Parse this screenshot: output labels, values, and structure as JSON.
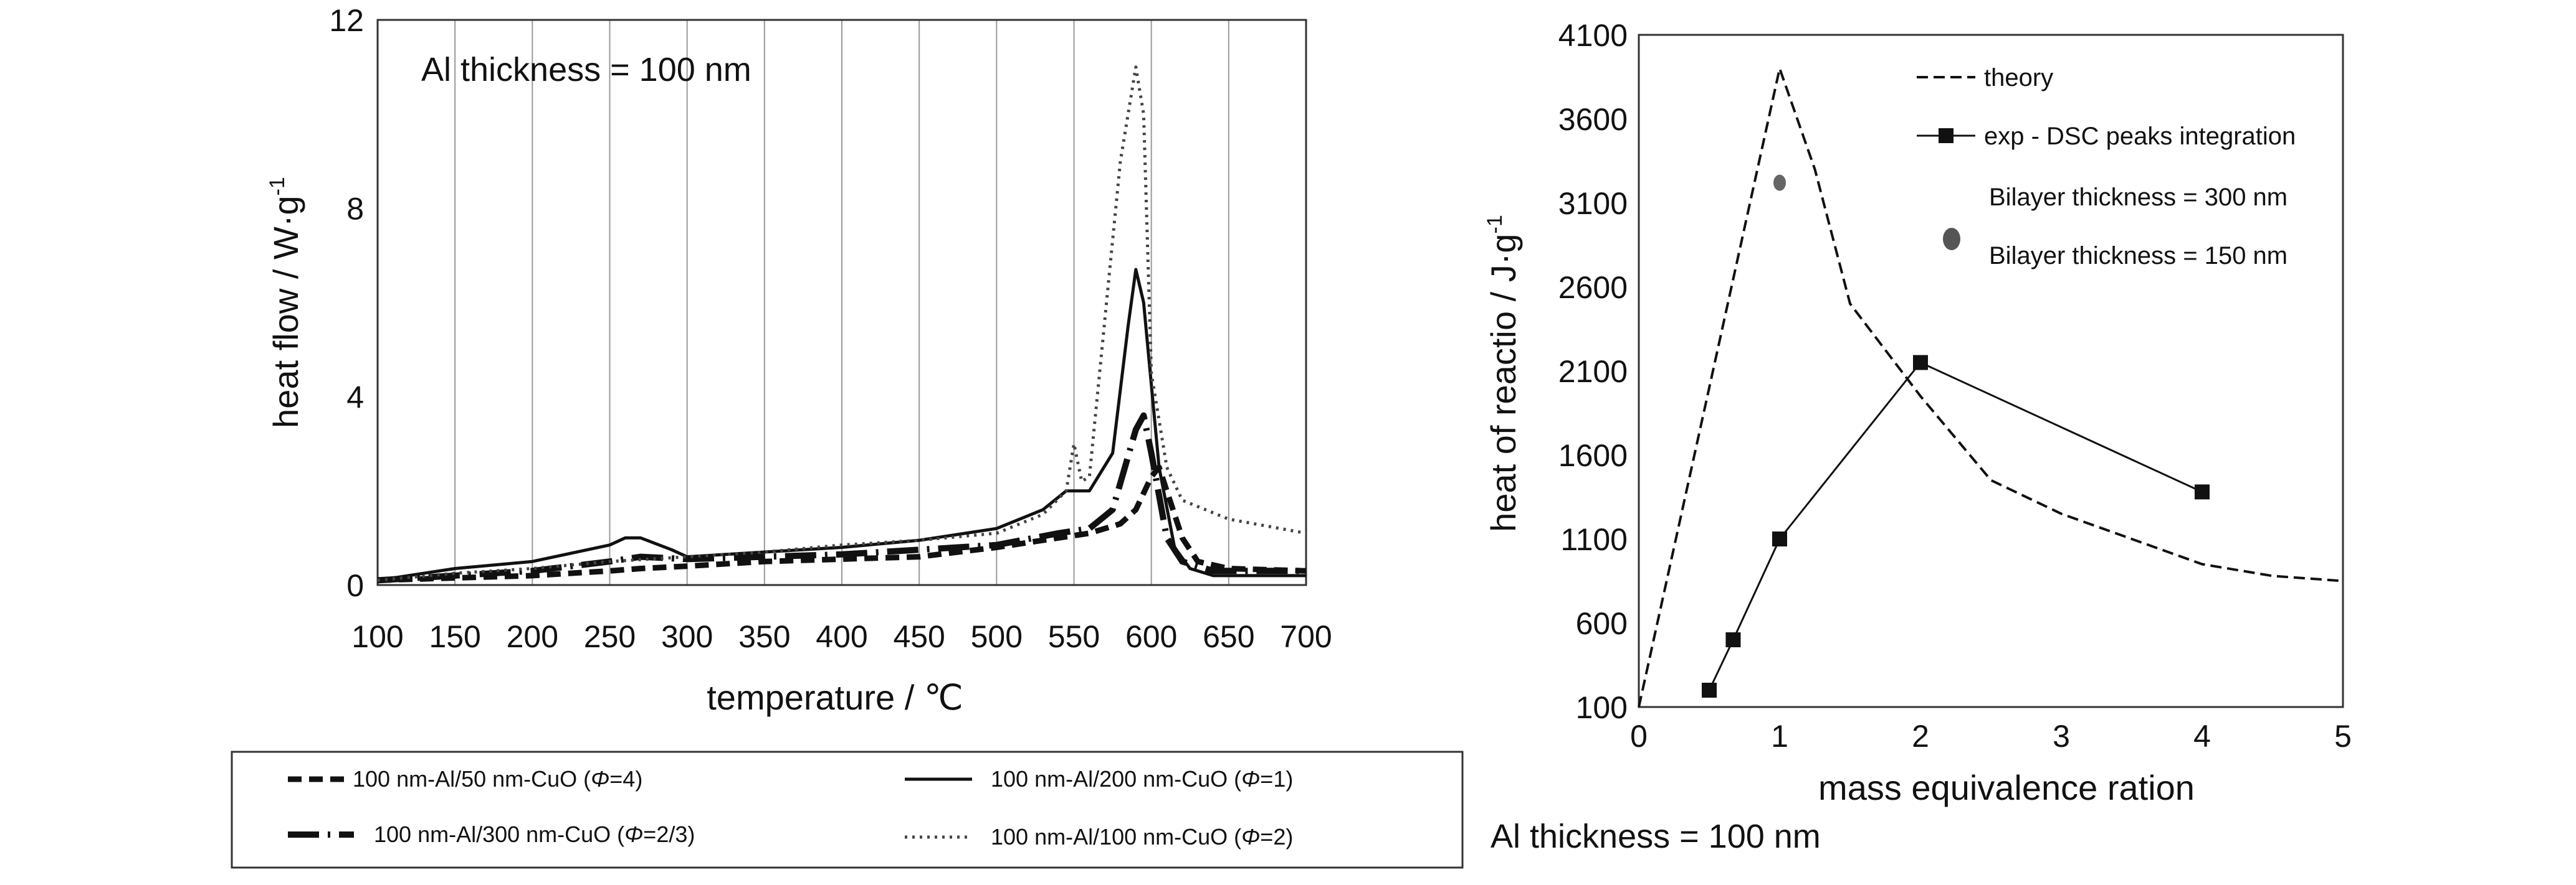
{
  "chart_data": [
    {
      "type": "line",
      "title": "",
      "annotation": "Al thickness = 100 nm",
      "xlabel": "temperature / ℃",
      "ylabel": "heat flow / W·g",
      "ylabel_sup": "-1",
      "xlim": [
        100,
        700
      ],
      "ylim": [
        0,
        12
      ],
      "xticks": [
        "100",
        "150",
        "200",
        "250",
        "300",
        "350",
        "400",
        "450",
        "500",
        "550",
        "600",
        "650",
        "700"
      ],
      "yticks": [
        "0",
        "4",
        "8",
        "12"
      ],
      "grid": "vertical",
      "legend_position": "bottom",
      "series": [
        {
          "name": "100 nm-Al/50 nm-CuO (",
          "phi_label": "Φ",
          "phi_value": "=4)",
          "style": "dashed-bold",
          "x": [
            100,
            150,
            200,
            250,
            270,
            300,
            350,
            400,
            450,
            500,
            540,
            560,
            580,
            590,
            600,
            605,
            610,
            620,
            630,
            650,
            700
          ],
          "y": [
            0.1,
            0.15,
            0.2,
            0.3,
            0.35,
            0.4,
            0.5,
            0.55,
            0.6,
            0.8,
            1.0,
            1.1,
            1.3,
            1.6,
            2.3,
            2.5,
            2.0,
            1.0,
            0.5,
            0.35,
            0.3
          ]
        },
        {
          "name": "100 nm-Al/300 nm-CuO (",
          "phi_label": "Φ",
          "phi_value": "=2/3)",
          "style": "dashdot-bold",
          "x": [
            100,
            150,
            200,
            250,
            270,
            300,
            350,
            400,
            450,
            500,
            540,
            560,
            575,
            590,
            595,
            600,
            610,
            620,
            640,
            660,
            700
          ],
          "y": [
            0.1,
            0.2,
            0.3,
            0.5,
            0.6,
            0.55,
            0.6,
            0.65,
            0.75,
            0.85,
            1.1,
            1.2,
            1.6,
            3.3,
            3.6,
            2.8,
            1.0,
            0.5,
            0.3,
            0.3,
            0.3
          ]
        },
        {
          "name": "100 nm-Al/200 nm-CuO (",
          "phi_label": "Φ",
          "phi_value": "=1)",
          "style": "solid",
          "x": [
            100,
            150,
            200,
            250,
            260,
            270,
            290,
            300,
            350,
            400,
            450,
            500,
            530,
            545,
            560,
            575,
            585,
            590,
            595,
            605,
            615,
            625,
            640,
            700
          ],
          "y": [
            0.1,
            0.35,
            0.5,
            0.85,
            1.0,
            1.0,
            0.75,
            0.6,
            0.7,
            0.8,
            0.95,
            1.2,
            1.6,
            2.0,
            2.0,
            2.8,
            5.5,
            6.7,
            6.0,
            2.5,
            0.8,
            0.35,
            0.2,
            0.2
          ]
        },
        {
          "name": "100 nm-Al/100 nm-CuO (",
          "phi_label": "Φ",
          "phi_value": "=2)",
          "style": "dotted",
          "x": [
            100,
            150,
            200,
            250,
            300,
            350,
            400,
            450,
            500,
            530,
            545,
            550,
            555,
            560,
            580,
            590,
            595,
            600,
            610,
            620,
            650,
            700
          ],
          "y": [
            0.1,
            0.25,
            0.35,
            0.5,
            0.6,
            0.7,
            0.85,
            0.95,
            1.1,
            1.5,
            2.0,
            3.0,
            2.2,
            2.3,
            9.0,
            11.0,
            10.0,
            4.5,
            2.5,
            1.8,
            1.4,
            1.1
          ]
        }
      ]
    },
    {
      "type": "line",
      "title": "",
      "annotation": "Al thickness = 100 nm",
      "xlabel": "mass equivalence ration",
      "ylabel": "heat of reactio / J·g",
      "ylabel_sup": "-1",
      "xlim": [
        0,
        5
      ],
      "ylim": [
        100,
        4100
      ],
      "xticks": [
        "0",
        "1",
        "2",
        "3",
        "4",
        "5"
      ],
      "yticks": [
        "100",
        "600",
        "1100",
        "1600",
        "2100",
        "2600",
        "3100",
        "3600",
        "4100"
      ],
      "grid": "none",
      "legend_position": "top-right",
      "series": [
        {
          "name": "theory",
          "style": "dashed",
          "x": [
            0,
            0.25,
            0.5,
            0.75,
            1.0,
            1.25,
            1.5,
            2.0,
            2.5,
            3.0,
            3.5,
            4.0,
            4.5,
            5.0
          ],
          "y": [
            100,
            1050,
            2000,
            2950,
            3900,
            3300,
            2500,
            1950,
            1450,
            1250,
            1100,
            950,
            880,
            850
          ]
        },
        {
          "name": "exp - DSC peaks integration",
          "style": "solid-square",
          "x": [
            0.5,
            0.67,
            1.0,
            2.0,
            4.0
          ],
          "y": [
            200,
            500,
            1100,
            2150,
            1380
          ]
        },
        {
          "name": "Bilayer thickness = 300 nm",
          "style": "marker-small",
          "x": [
            1.0
          ],
          "y": [
            3220
          ]
        },
        {
          "name": "Bilayer thickness = 150 nm",
          "style": "marker-large",
          "x": [],
          "y": []
        }
      ]
    }
  ]
}
